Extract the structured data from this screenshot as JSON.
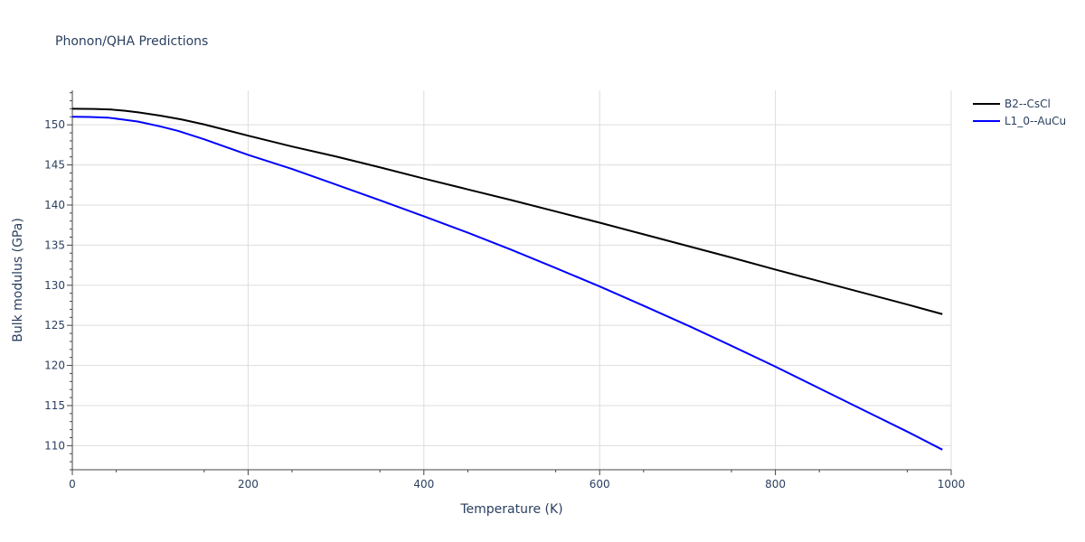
{
  "chart_data": {
    "type": "line",
    "title": "Phonon/QHA Predictions",
    "xlabel": "Temperature (K)",
    "ylabel": "Bulk modulus (GPa)",
    "xlim": [
      0,
      1000
    ],
    "ylim": [
      107,
      154.3
    ],
    "xticks": [
      0,
      200,
      400,
      600,
      800,
      1000
    ],
    "yticks": [
      110,
      115,
      120,
      125,
      130,
      135,
      140,
      145,
      150
    ],
    "grid": true,
    "legend_position": "top-right",
    "series": [
      {
        "name": "B2--CsCl",
        "color": "#000000",
        "x": [
          0,
          25,
          45,
          60,
          75,
          100,
          125,
          150,
          200,
          250,
          300,
          350,
          400,
          450,
          500,
          550,
          600,
          650,
          700,
          750,
          800,
          850,
          900,
          950,
          990
        ],
        "y": [
          152.0,
          151.98,
          151.9,
          151.75,
          151.55,
          151.15,
          150.65,
          150.05,
          148.65,
          147.3,
          146.05,
          144.7,
          143.3,
          141.95,
          140.6,
          139.2,
          137.8,
          136.35,
          134.9,
          133.45,
          131.95,
          130.5,
          129.05,
          127.6,
          126.4
        ]
      },
      {
        "name": "L1_0--AuCu",
        "color": "#0000ff",
        "x": [
          0,
          20,
          40,
          55,
          75,
          100,
          120,
          150,
          200,
          250,
          300,
          350,
          400,
          450,
          500,
          550,
          600,
          650,
          700,
          750,
          800,
          850,
          900,
          950,
          990
        ],
        "y": [
          151.0,
          150.98,
          150.9,
          150.7,
          150.4,
          149.8,
          149.25,
          148.2,
          146.25,
          144.5,
          142.55,
          140.6,
          138.6,
          136.55,
          134.4,
          132.15,
          129.85,
          127.45,
          125.0,
          122.45,
          119.85,
          117.15,
          114.45,
          111.75,
          109.5
        ]
      }
    ]
  }
}
